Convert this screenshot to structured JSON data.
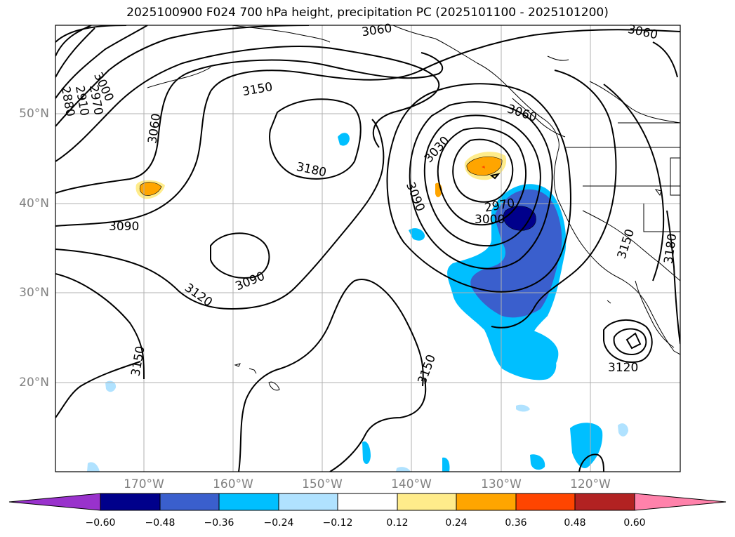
{
  "title": "2025100900 F024 700 hPa height, precipitation PC (2025101100 - 2025101200)",
  "colors": {
    "land_outline": "#000000",
    "contour": "#000000",
    "grid": "#b0b0b0",
    "axis_tick_label": "#808080"
  },
  "lat_labels": [
    "50°N",
    "40°N",
    "30°N",
    "20°N"
  ],
  "lon_labels": [
    "170°W",
    "160°W",
    "150°W",
    "140°W",
    "130°W",
    "120°W"
  ],
  "contour_labels": [
    {
      "text": "3060"
    },
    {
      "text": "3060"
    },
    {
      "text": "3000"
    },
    {
      "text": "2970"
    },
    {
      "text": "2910"
    },
    {
      "text": "2880"
    },
    {
      "text": "3060"
    },
    {
      "text": "3150"
    },
    {
      "text": "3180"
    },
    {
      "text": "3060"
    },
    {
      "text": "3030"
    },
    {
      "text": "3090"
    },
    {
      "text": "2970"
    },
    {
      "text": "3000"
    },
    {
      "text": "3090"
    },
    {
      "text": "3090"
    },
    {
      "text": "3120"
    },
    {
      "text": "3150"
    },
    {
      "text": "3150"
    },
    {
      "text": "3150"
    },
    {
      "text": "3180"
    },
    {
      "text": "3120"
    }
  ],
  "colorbar": {
    "ticks": [
      "−0.60",
      "−0.48",
      "−0.36",
      "−0.24",
      "−0.12",
      "0.12",
      "0.24",
      "0.36",
      "0.48",
      "0.60"
    ],
    "colors": [
      "#9932cc",
      "#00008b",
      "#3a5fcd",
      "#00bfff",
      "#b0e2ff",
      "#ffffff",
      "#ffec8b",
      "#ffa500",
      "#ff4500",
      "#b22222",
      "#ff82ab"
    ]
  }
}
